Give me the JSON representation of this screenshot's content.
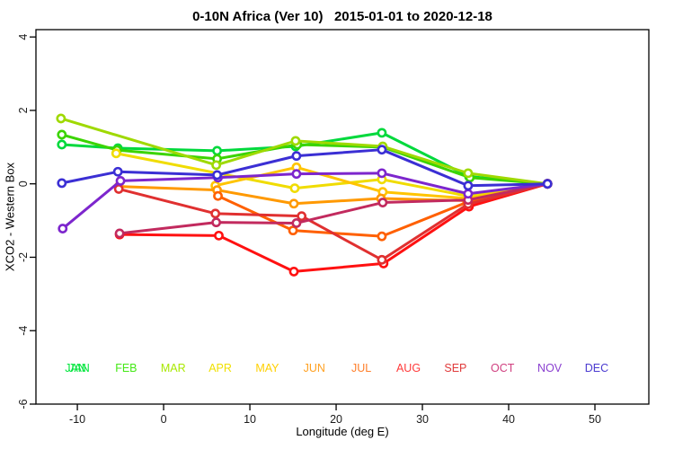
{
  "title": "0-10N Africa (Ver 10)   2015-01-01 to 2020-12-18",
  "chart_data": {
    "type": "line",
    "title": "0-10N Africa (Ver 10)   2015-01-01 to 2020-12-18",
    "xlabel": "Longitude (deg E)",
    "ylabel": "XCO2 - Western Box",
    "xlim": [
      -14.8,
      56.25
    ],
    "ylim": [
      -6,
      4.2
    ],
    "xticks": [
      -10,
      0,
      10,
      20,
      30,
      40,
      50
    ],
    "yticks": [
      4,
      2,
      0,
      -2,
      -4,
      -6
    ],
    "grid": false,
    "marker": "open-circle-white-fill",
    "legend_position": "bottom-inside-row",
    "axis_color": "#000000",
    "series": [
      {
        "name": "JAN",
        "color": "#00D93C",
        "points": [
          [
            -11.8,
            1.07
          ],
          [
            -5.3,
            0.97
          ],
          [
            6.2,
            0.9
          ],
          [
            15.3,
            1.02
          ],
          [
            25.3,
            1.39
          ],
          [
            35.4,
            0.2
          ],
          [
            44.5,
            0
          ]
        ]
      },
      {
        "name": "FEB",
        "color": "#3BD400",
        "points": [
          [
            -11.8,
            1.34
          ],
          [
            -5.4,
            0.92
          ],
          [
            6.2,
            0.68
          ],
          [
            15.5,
            1.07
          ],
          [
            25.4,
            1.0
          ],
          [
            35.5,
            0.17
          ],
          [
            44.5,
            0
          ]
        ]
      },
      {
        "name": "MAR",
        "color": "#9FD900",
        "points": [
          [
            -11.9,
            1.78
          ],
          [
            6.1,
            0.51
          ],
          [
            15.3,
            1.17
          ],
          [
            25.4,
            1.02
          ],
          [
            35.3,
            0.29
          ],
          [
            44.5,
            0
          ]
        ]
      },
      {
        "name": "APR",
        "color": "#F0DC00",
        "points": [
          [
            -5.5,
            0.83
          ],
          [
            15.2,
            -0.12
          ],
          [
            25.3,
            0.12
          ],
          [
            35.4,
            -0.34
          ],
          [
            44.5,
            0
          ]
        ]
      },
      {
        "name": "MAY",
        "color": "#FFC400",
        "points": [
          [
            6.0,
            -0.05
          ],
          [
            15.4,
            0.45
          ],
          [
            25.4,
            -0.22
          ],
          [
            35.4,
            -0.4
          ],
          [
            44.5,
            0
          ]
        ]
      },
      {
        "name": "JUN",
        "color": "#FF9900",
        "points": [
          [
            -5.2,
            -0.07
          ],
          [
            6.2,
            -0.17
          ],
          [
            15.1,
            -0.54
          ],
          [
            25.2,
            -0.4
          ],
          [
            35.3,
            -0.46
          ],
          [
            44.5,
            0
          ]
        ]
      },
      {
        "name": "JUL",
        "color": "#FF6000",
        "points": [
          [
            6.3,
            -0.33
          ],
          [
            15.0,
            -1.27
          ],
          [
            25.3,
            -1.43
          ],
          [
            35.2,
            -0.5
          ],
          [
            44.5,
            0
          ]
        ]
      },
      {
        "name": "AUG",
        "color": "#FF1111",
        "points": [
          [
            -5.1,
            -1.38
          ],
          [
            6.4,
            -1.41
          ],
          [
            15.1,
            -2.39
          ],
          [
            25.5,
            -2.17
          ],
          [
            35.4,
            -0.62
          ],
          [
            44.5,
            0
          ]
        ]
      },
      {
        "name": "SEP",
        "color": "#E03030",
        "points": [
          [
            -5.2,
            -0.14
          ],
          [
            6.0,
            -0.81
          ],
          [
            16.0,
            -0.88
          ],
          [
            25.3,
            -2.07
          ],
          [
            35.3,
            -0.55
          ],
          [
            44.5,
            0
          ]
        ]
      },
      {
        "name": "OCT",
        "color": "#C22A5E",
        "points": [
          [
            -5.1,
            -1.35
          ],
          [
            6.1,
            -1.05
          ],
          [
            15.4,
            -1.07
          ],
          [
            25.4,
            -0.51
          ],
          [
            35.3,
            -0.44
          ],
          [
            44.5,
            0
          ]
        ]
      },
      {
        "name": "NOV",
        "color": "#7D26CD",
        "points": [
          [
            -11.7,
            -1.22
          ],
          [
            -5.0,
            0.08
          ],
          [
            6.3,
            0.17
          ],
          [
            15.4,
            0.27
          ],
          [
            25.3,
            0.29
          ],
          [
            35.3,
            -0.27
          ],
          [
            44.5,
            0
          ]
        ]
      },
      {
        "name": "DEC",
        "color": "#3B2FD4",
        "points": [
          [
            -11.8,
            0.02
          ],
          [
            -5.3,
            0.33
          ],
          [
            6.2,
            0.24
          ],
          [
            15.4,
            0.76
          ],
          [
            25.3,
            0.93
          ],
          [
            35.3,
            -0.05
          ],
          [
            44.5,
            0
          ]
        ]
      }
    ],
    "legend": [
      {
        "label": "JAN",
        "color": "#00E63C",
        "overprint": true
      },
      {
        "label": "FEB",
        "color": "#44E816",
        "overprint": false
      },
      {
        "label": "MAR",
        "color": "#A8E800",
        "overprint": false
      },
      {
        "label": "APR",
        "color": "#F0E000",
        "overprint": false
      },
      {
        "label": "MAY",
        "color": "#FFD000",
        "overprint": false
      },
      {
        "label": "JUN",
        "color": "#FFA020",
        "overprint": false
      },
      {
        "label": "JUL",
        "color": "#FF7F2A",
        "overprint": false
      },
      {
        "label": "AUG",
        "color": "#FF3A3A",
        "overprint": false
      },
      {
        "label": "SEP",
        "color": "#E03A3A",
        "overprint": false
      },
      {
        "label": "OCT",
        "color": "#D04080",
        "overprint": false
      },
      {
        "label": "NOV",
        "color": "#8A3FD0",
        "overprint": false
      },
      {
        "label": "DEC",
        "color": "#4A3AD0",
        "overprint": false
      }
    ]
  },
  "labels": {
    "xlabel": "Longitude (deg E)",
    "ylabel": "XCO2 - Western Box"
  }
}
